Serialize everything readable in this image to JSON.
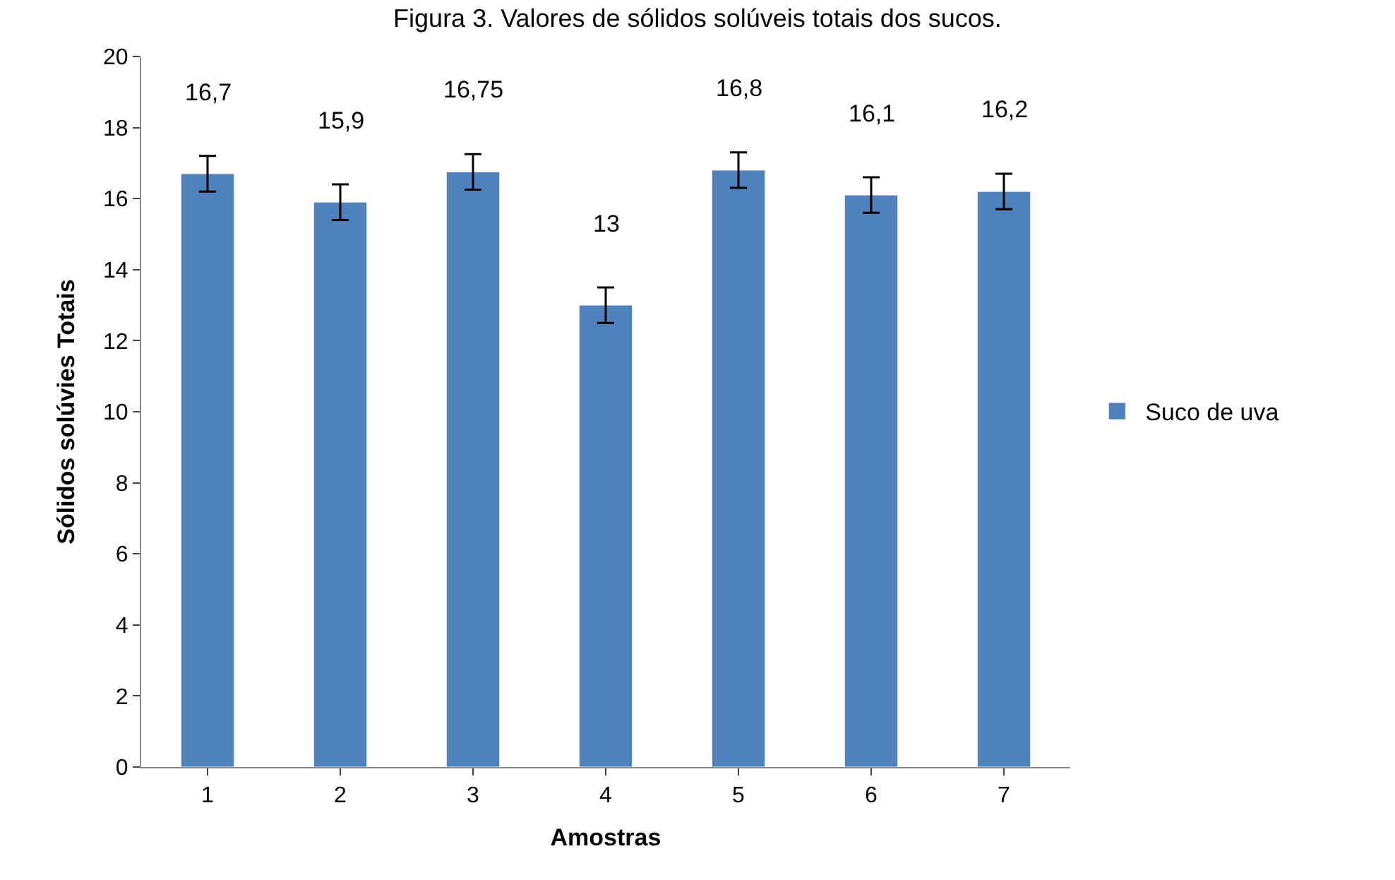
{
  "chart_data": {
    "type": "bar",
    "title": "Figura 3. Valores de sólidos solúveis totais dos sucos.",
    "xlabel": "Amostras",
    "ylabel": "Sólidos solúvies Totais",
    "categories": [
      "1",
      "2",
      "3",
      "4",
      "5",
      "6",
      "7"
    ],
    "series": [
      {
        "name": "Suco de uva",
        "color": "#4f81bd",
        "values": [
          16.7,
          15.9,
          16.75,
          13,
          16.8,
          16.1,
          16.2
        ],
        "errors": [
          0.5,
          0.5,
          0.5,
          0.5,
          0.5,
          0.5,
          0.5
        ],
        "value_labels": [
          "16,7",
          "15,9",
          "16,75",
          "13",
          "16,8",
          "16,1",
          "16,2"
        ]
      }
    ],
    "ylim": [
      0,
      20
    ],
    "yticks": [
      0,
      2,
      4,
      6,
      8,
      10,
      12,
      14,
      16,
      18,
      20
    ],
    "legend": "right"
  }
}
